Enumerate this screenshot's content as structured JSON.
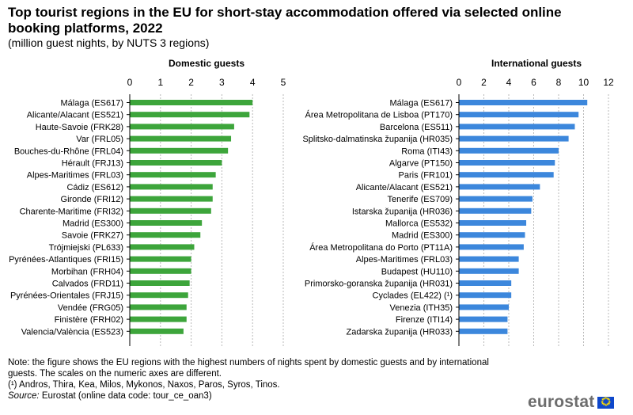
{
  "header": {
    "title": "Top tourist regions in the EU for short-stay accommodation offered via selected online booking platforms, 2022",
    "subtitle": "(million guest nights, by NUTS 3 regions)"
  },
  "chart_data": [
    {
      "type": "bar",
      "orientation": "horizontal",
      "title": "Domestic guests",
      "color": "#3da53b",
      "xlim": [
        0,
        5
      ],
      "ticks": [
        0,
        1,
        2,
        3,
        4,
        5
      ],
      "categories": [
        "Málaga (ES617)",
        "Alicante/Alacant (ES521)",
        "Haute-Savoie (FRK28)",
        "Var (FRL05)",
        "Bouches-du-Rhône (FRL04)",
        "Hérault (FRJ13)",
        "Alpes-Maritimes (FRL03)",
        "Cádiz (ES612)",
        "Gironde (FRI12)",
        "Charente-Maritime (FRI32)",
        "Madrid (ES300)",
        "Savoie (FRK27)",
        "Trójmiejski (PL633)",
        "Pyrénées-Atlantiques (FRI15)",
        "Morbihan (FRH04)",
        "Calvados (FRD11)",
        "Pyrénées-Orientales (FRJ15)",
        "Vendée (FRG05)",
        "Finistère (FRH02)",
        "Valencia/València (ES523)"
      ],
      "values": [
        4.0,
        3.9,
        3.4,
        3.3,
        3.2,
        3.0,
        2.8,
        2.7,
        2.7,
        2.65,
        2.35,
        2.3,
        2.1,
        2.0,
        2.0,
        1.95,
        1.9,
        1.85,
        1.85,
        1.75
      ]
    },
    {
      "type": "bar",
      "orientation": "horizontal",
      "title": "International guests",
      "color": "#3c87dc",
      "xlim": [
        0,
        12
      ],
      "ticks": [
        0,
        2,
        4,
        6,
        8,
        10,
        12
      ],
      "categories": [
        "Málaga (ES617)",
        "Área Metropolitana de Lisboa (PT170)",
        "Barcelona (ES511)",
        "Splitsko-dalmatinska županija (HR035)",
        "Roma (ITI43)",
        "Algarve (PT150)",
        "Paris (FR101)",
        "Alicante/Alacant (ES521)",
        "Tenerife (ES709)",
        "Istarska županija (HR036)",
        "Mallorca (ES532)",
        "Madrid (ES300)",
        "Área Metropolitana do Porto (PT11A)",
        "Alpes-Maritimes (FRL03)",
        "Budapest (HU110)",
        "Primorsko-goranska županija (HR031)",
        "Cyclades (EL422) (¹)",
        "Venezia (ITH35)",
        "Firenze (ITI14)",
        "Zadarska županija (HR033)"
      ],
      "values": [
        10.3,
        9.6,
        9.3,
        8.8,
        8.0,
        7.7,
        7.6,
        6.5,
        5.9,
        5.8,
        5.4,
        5.3,
        5.2,
        4.8,
        4.8,
        4.2,
        4.2,
        4.0,
        3.9,
        3.9
      ]
    }
  ],
  "notes": {
    "note": "Note: the figure shows the EU regions with the highest numbers of nights spent by domestic guests and by international guests. The scales on the numeric axes are different.",
    "footnote": "(¹) Andros, Thira, Kea, Milos, Mykonos, Naxos, Paros, Syros, Tinos.",
    "source_label": "Source:",
    "source_text": " Eurostat (online data code: tour_ce_oan3)"
  },
  "logo": {
    "text": "eurostat"
  }
}
